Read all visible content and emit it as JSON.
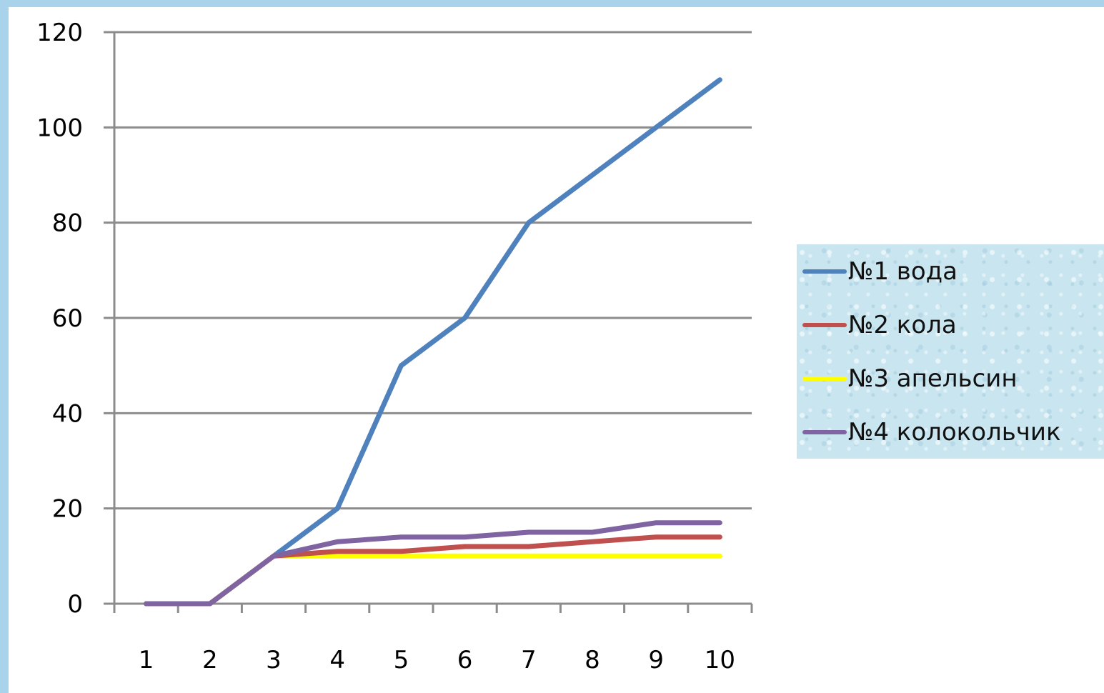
{
  "chart_data": {
    "type": "line",
    "title": "",
    "xlabel": "",
    "ylabel": "",
    "x": [
      "1",
      "2",
      "3",
      "4",
      "5",
      "6",
      "7",
      "8",
      "9",
      "10"
    ],
    "ylim": [
      0,
      120
    ],
    "yticks": [
      0,
      20,
      40,
      60,
      80,
      100,
      120
    ],
    "grid": "horizontal",
    "legend_position": "right",
    "series": [
      {
        "name": "№1 вода",
        "color": "#4f81bd",
        "values": [
          0,
          0,
          10,
          20,
          50,
          60,
          80,
          90,
          100,
          110
        ]
      },
      {
        "name": "№2 кола",
        "color": "#c0504d",
        "values": [
          0,
          0,
          10,
          11,
          11,
          12,
          12,
          13,
          14,
          14
        ]
      },
      {
        "name": "№3 апельсин",
        "color": "#ffff00",
        "values": [
          0,
          0,
          10,
          10,
          10,
          10,
          10,
          10,
          10,
          10
        ]
      },
      {
        "name": "№4 колокольчик",
        "color": "#8064a2",
        "values": [
          0,
          0,
          10,
          13,
          14,
          14,
          15,
          15,
          17,
          17
        ]
      }
    ]
  }
}
